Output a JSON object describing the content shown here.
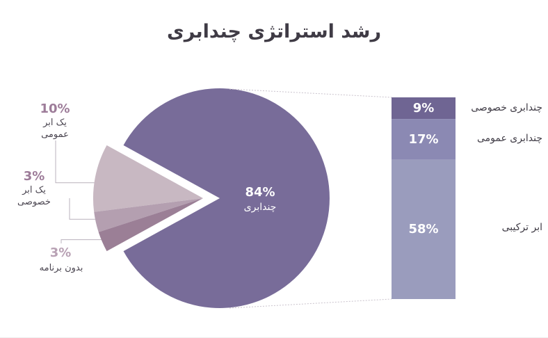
{
  "title": "رشد استراتژی چندابری",
  "colors": {
    "hybrid": "#786c99",
    "public_single": "#c8b8c2",
    "private_single": "#b49fb0",
    "no_plan": "#9b7f96",
    "stack_private": "#6f6593",
    "stack_public": "#8b89b3",
    "stack_hybrid": "#9a9cbd",
    "pct_public": "#9d7c99",
    "pct_private": "#9d7c99",
    "pct_noplan": "#b8a1b4"
  },
  "chart_data": [
    {
      "type": "pie",
      "title": "رشد استراتژی چندابری",
      "slices": [
        {
          "label": "چندابری",
          "value": 84,
          "value_label": "84%",
          "exploded": false
        },
        {
          "label": "یک ابر عمومی",
          "value": 10,
          "value_label": "10%",
          "exploded": true
        },
        {
          "label": "یک ابر خصوصی",
          "value": 3,
          "value_label": "3%",
          "exploded": true
        },
        {
          "label": "بدون برنامه",
          "value": 3,
          "value_label": "3%",
          "exploded": true
        }
      ]
    },
    {
      "type": "bar",
      "stacked": true,
      "parent": "چندابری",
      "series": [
        {
          "name": "چندابری خصوصی",
          "value": 9,
          "value_label": "9%"
        },
        {
          "name": "چندابری عمومی",
          "value": 17,
          "value_label": "17%"
        },
        {
          "name": "ابر ترکیبی",
          "value": 58,
          "value_label": "58%"
        }
      ]
    }
  ],
  "labels": {
    "public_line1": "یک ابر",
    "public_line2": "عمومی",
    "private_line1": "یک ابر",
    "private_line2": "خصوصی",
    "noplan": "بدون برنامه"
  }
}
